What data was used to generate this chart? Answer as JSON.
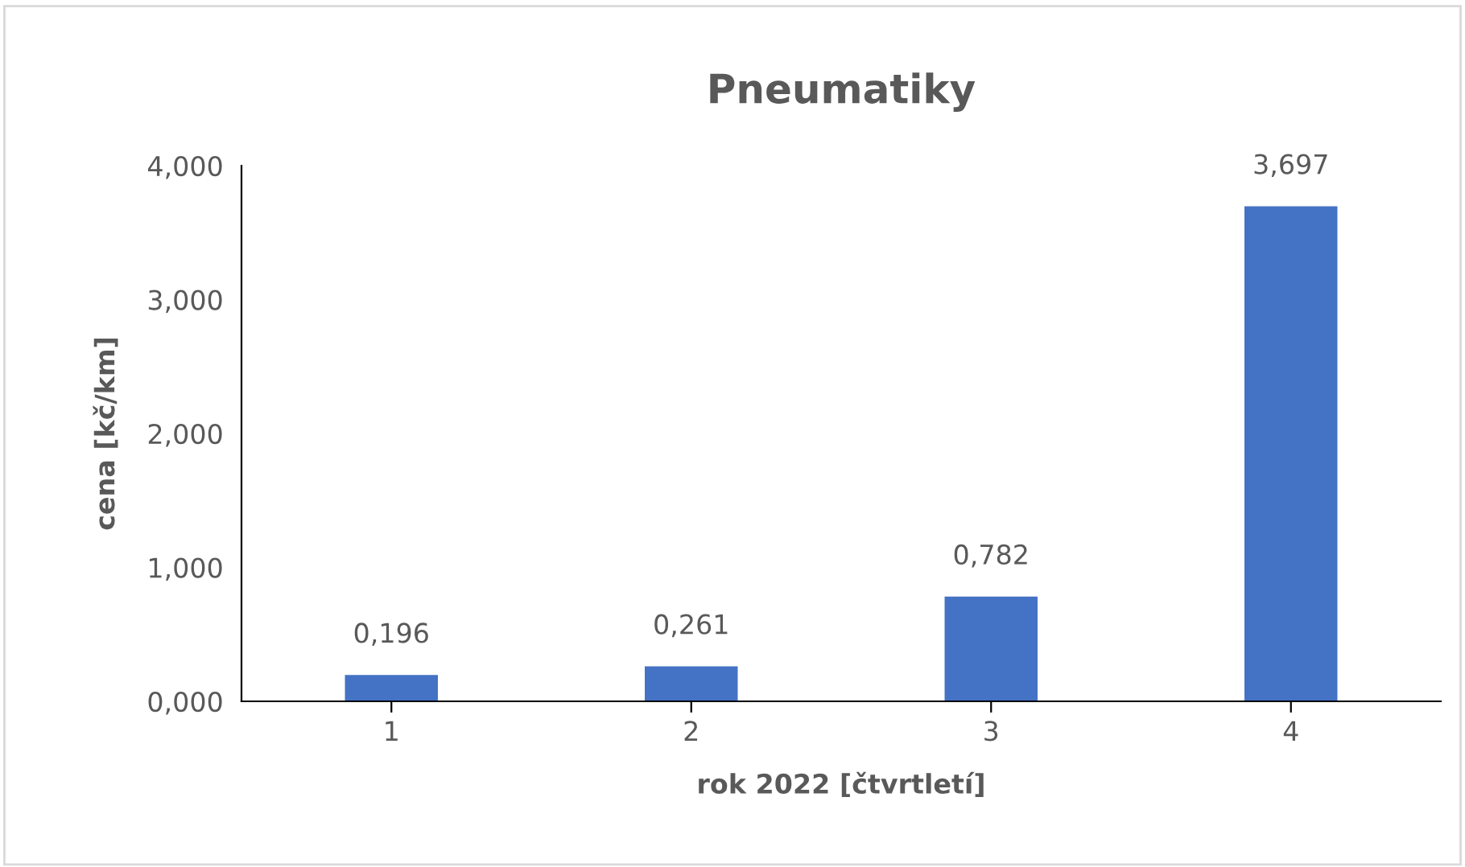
{
  "chart_data": {
    "type": "bar",
    "title": "Pneumatiky",
    "xlabel": "rok 2022 [čtvrtletí]",
    "ylabel": "cena [kč/km]",
    "categories": [
      "1",
      "2",
      "3",
      "4"
    ],
    "values": [
      0.196,
      0.261,
      0.782,
      3.697
    ],
    "value_labels": [
      "0,196",
      "0,261",
      "0,782",
      "3,697"
    ],
    "color": "#4472c4",
    "ylim": [
      0,
      4
    ],
    "yticks": [
      {
        "value": 0,
        "label": "0,000"
      },
      {
        "value": 1,
        "label": "1,000"
      },
      {
        "value": 2,
        "label": "2,000"
      },
      {
        "value": 3,
        "label": "3,000"
      },
      {
        "value": 4,
        "label": "4,000"
      }
    ],
    "grid": false
  }
}
